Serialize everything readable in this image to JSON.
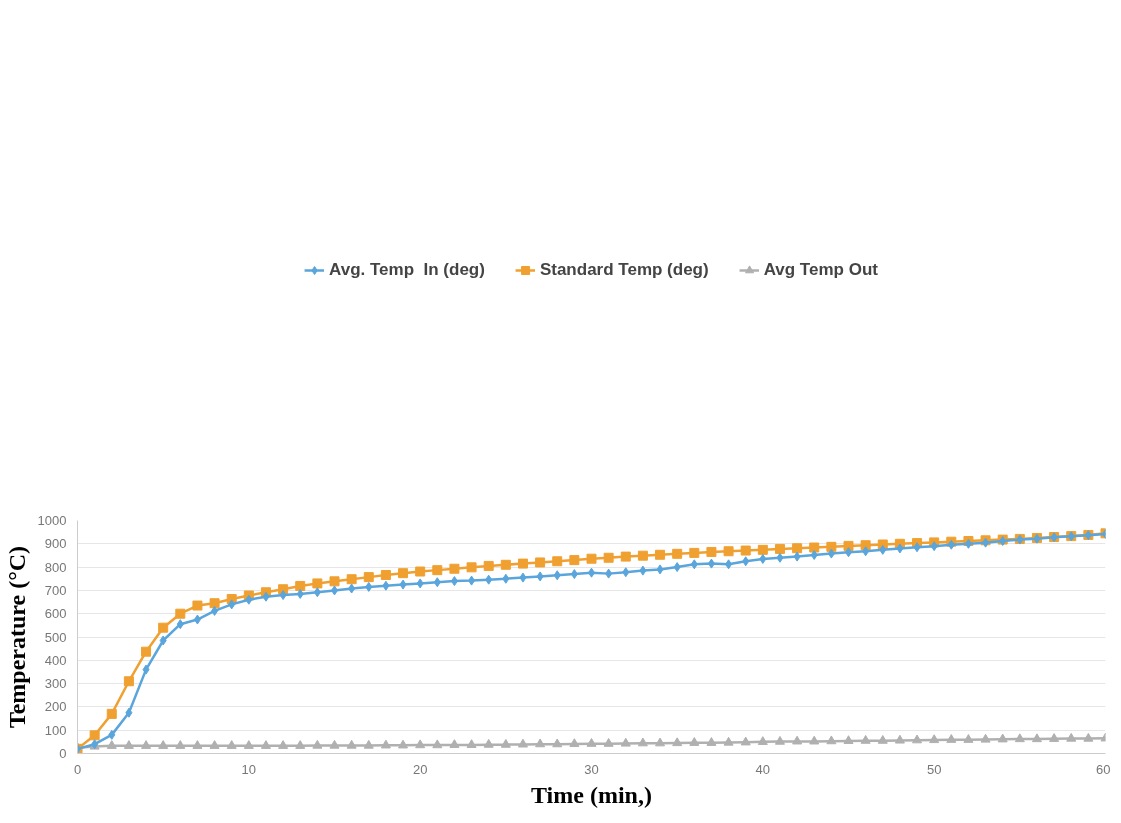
{
  "chart_data": {
    "type": "line",
    "xlabel": "Time (min,)",
    "ylabel": "Temperature (°C)",
    "x": [
      0,
      1,
      2,
      3,
      4,
      5,
      6,
      7,
      8,
      9,
      10,
      11,
      12,
      13,
      14,
      15,
      16,
      17,
      18,
      19,
      20,
      21,
      22,
      23,
      24,
      25,
      26,
      27,
      28,
      29,
      30,
      31,
      32,
      33,
      34,
      35,
      36,
      37,
      38,
      39,
      40,
      41,
      42,
      43,
      44,
      45,
      46,
      47,
      48,
      49,
      50,
      51,
      52,
      53,
      54,
      55,
      56,
      57,
      58,
      59,
      60
    ],
    "series": [
      {
        "name": "Avg. Temp  In (deg)",
        "color": "#5aa5dc",
        "marker": "diamond",
        "values": [
          20,
          40,
          80,
          175,
          360,
          485,
          555,
          575,
          612,
          640,
          660,
          673,
          680,
          685,
          692,
          700,
          708,
          715,
          720,
          725,
          730,
          735,
          740,
          742,
          746,
          750,
          755,
          760,
          765,
          770,
          776,
          772,
          778,
          785,
          790,
          800,
          812,
          815,
          812,
          825,
          835,
          840,
          845,
          852,
          858,
          864,
          868,
          874,
          880,
          885,
          890,
          896,
          900,
          905,
          912,
          918,
          922,
          928,
          932,
          937,
          942
        ]
      },
      {
        "name": "Standard Temp (deg)",
        "color": "#f0a030",
        "marker": "square",
        "values": [
          20,
          78,
          170,
          310,
          437,
          540,
          600,
          635,
          645,
          663,
          678,
          692,
          705,
          719,
          730,
          739,
          748,
          757,
          766,
          774,
          781,
          787,
          793,
          799,
          805,
          810,
          815,
          820,
          825,
          830,
          836,
          840,
          845,
          849,
          853,
          857,
          861,
          865,
          868,
          871,
          874,
          878,
          881,
          884,
          887,
          891,
          894,
          897,
          900,
          903,
          906,
          909,
          912,
          915,
          918,
          921,
          925,
          929,
          933,
          938,
          945
        ]
      },
      {
        "name": "Avg Temp Out",
        "color": "#b0b0b0",
        "marker": "triangle",
        "values": [
          25,
          30,
          33,
          33,
          33,
          33,
          33,
          33,
          33,
          33,
          33,
          33,
          33,
          33,
          34,
          34,
          34,
          34,
          35,
          35,
          36,
          36,
          37,
          37,
          38,
          38,
          39,
          40,
          40,
          41,
          42,
          42,
          43,
          44,
          44,
          45,
          46,
          46,
          47,
          48,
          50,
          51,
          52,
          52,
          53,
          54,
          55,
          55,
          56,
          57,
          58,
          59,
          59,
          60,
          61,
          62,
          62,
          63,
          64,
          64,
          65
        ]
      }
    ],
    "xlim": [
      0,
      60
    ],
    "xticks": [
      0,
      10,
      20,
      30,
      40,
      50,
      60
    ],
    "ylim": [
      0,
      1000
    ],
    "yticks": [
      0,
      100,
      200,
      300,
      400,
      500,
      600,
      700,
      800,
      900,
      1000
    ],
    "grid": "y",
    "legend": "top",
    "line_style": "solid"
  }
}
